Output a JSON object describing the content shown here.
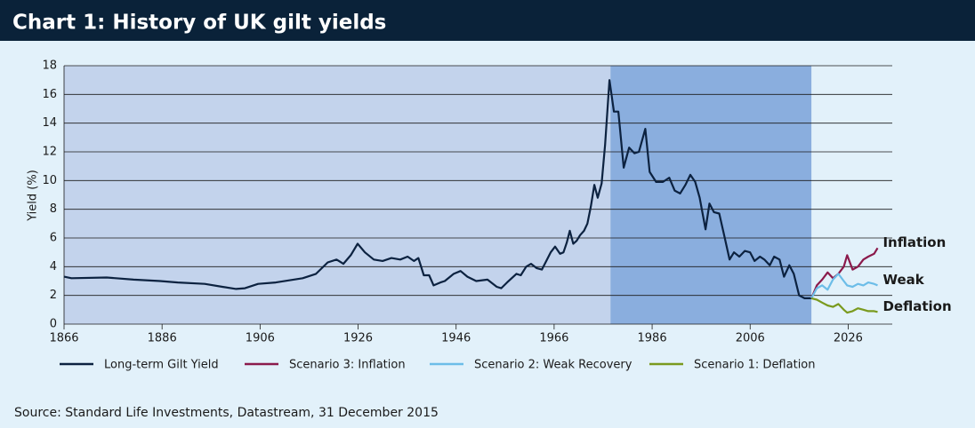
{
  "chart_data": {
    "type": "line",
    "title": "Chart 1: History of UK gilt yields",
    "y_label": "Yield (%)",
    "source": "Source: Standard Life Investments, Datastream, 31 December 2015",
    "xlim": [
      1866,
      2035
    ],
    "xticks": [
      1866,
      1886,
      1906,
      1926,
      1946,
      1966,
      1986,
      2006,
      2026
    ],
    "ylim": [
      0,
      18
    ],
    "yticks": [
      0,
      2,
      4,
      6,
      8,
      10,
      12,
      14,
      16,
      18
    ],
    "grid": true,
    "shaded_regions": [
      {
        "x0": 1866,
        "x1": 1977.5,
        "color": "#c3d3ec"
      },
      {
        "x0": 1977.5,
        "x1": 2018.5,
        "color": "#8aaede"
      }
    ],
    "series": [
      {
        "name": "Long-term Gilt Yield",
        "color": "#0c2240",
        "x": [
          1866.0,
          1867.5,
          1874.7,
          1880.2,
          1885.6,
          1889.2,
          1894.7,
          1898.3,
          1901.1,
          1902.9,
          1905.6,
          1909.2,
          1914.7,
          1917.4,
          1919.8,
          1921.6,
          1923.0,
          1924.5,
          1925.9,
          1927.4,
          1929.2,
          1931.0,
          1932.8,
          1934.6,
          1936.1,
          1937.4,
          1938.3,
          1939.4,
          1940.5,
          1941.4,
          1942.8,
          1943.7,
          1945.5,
          1946.9,
          1948.3,
          1950.1,
          1952.4,
          1954.3,
          1955.2,
          1956.4,
          1958.3,
          1959.2,
          1960.3,
          1961.3,
          1962.4,
          1963.5,
          1964.4,
          1965.3,
          1966.2,
          1967.2,
          1967.9,
          1968.6,
          1969.2,
          1969.9,
          1970.6,
          1971.3,
          1972.1,
          1972.8,
          1973.5,
          1974.2,
          1974.9,
          1975.7,
          1976.4,
          1977.3,
          1978.2,
          1979.1,
          1980.2,
          1981.3,
          1982.4,
          1983.3,
          1984.6,
          1985.5,
          1986.8,
          1988.2,
          1989.5,
          1990.6,
          1991.7,
          1992.8,
          1993.8,
          1994.8,
          1995.7,
          1996.9,
          1997.7,
          1998.6,
          1999.7,
          2000.7,
          2001.8,
          2002.7,
          2003.8,
          2004.9,
          2006.0,
          2006.9,
          2008.0,
          2008.9,
          2010.0,
          2010.9,
          2012.0,
          2012.9,
          2014.0,
          2014.9,
          2016.0,
          2017.1,
          2018.5
        ],
        "values": [
          3.3,
          3.2,
          3.25,
          3.1,
          3.0,
          2.9,
          2.8,
          2.6,
          2.45,
          2.5,
          2.8,
          2.9,
          3.2,
          3.5,
          4.3,
          4.5,
          4.2,
          4.8,
          5.6,
          5.0,
          4.5,
          4.4,
          4.6,
          4.5,
          4.7,
          4.4,
          4.6,
          3.4,
          3.4,
          2.7,
          2.9,
          3.0,
          3.5,
          3.7,
          3.3,
          3.0,
          3.1,
          2.6,
          2.5,
          2.9,
          3.5,
          3.4,
          4.0,
          4.2,
          3.9,
          3.8,
          4.4,
          5.0,
          5.4,
          4.9,
          5.0,
          5.7,
          6.5,
          5.6,
          5.8,
          6.2,
          6.5,
          7.0,
          8.2,
          9.7,
          8.8,
          9.8,
          12.5,
          17.0,
          14.8,
          14.8,
          10.9,
          12.3,
          11.9,
          12.0,
          13.6,
          10.6,
          9.9,
          9.9,
          10.2,
          9.3,
          9.1,
          9.7,
          10.4,
          9.9,
          8.8,
          6.6,
          8.4,
          7.8,
          7.7,
          6.2,
          4.5,
          5.0,
          4.7,
          5.1,
          5.0,
          4.4,
          4.7,
          4.5,
          4.1,
          4.7,
          4.5,
          3.3,
          4.1,
          3.5,
          2.0,
          1.8,
          1.8
        ]
      },
      {
        "name": "Scenario 3: Inflation",
        "color": "#8b1a4b",
        "end_label": "Inflation",
        "x": [
          2018.5,
          2019.6,
          2020.7,
          2021.8,
          2022.9,
          2024.0,
          2025.1,
          2025.8,
          2026.9,
          2028.0,
          2029.1,
          2030.1,
          2031.3,
          2032.0
        ],
        "values": [
          1.8,
          2.7,
          3.1,
          3.6,
          3.2,
          3.5,
          4.0,
          4.8,
          3.8,
          4.0,
          4.5,
          4.7,
          4.9,
          5.3
        ]
      },
      {
        "name": "Scenario 2: Weak Recovery",
        "color": "#6cbde8",
        "end_label": "Weak",
        "x": [
          2018.5,
          2019.6,
          2020.7,
          2021.8,
          2022.9,
          2024.0,
          2025.1,
          2025.8,
          2026.9,
          2028.0,
          2029.1,
          2030.1,
          2031.3,
          2032.0
        ],
        "values": [
          1.8,
          2.5,
          2.7,
          2.4,
          3.1,
          3.5,
          3.0,
          2.7,
          2.6,
          2.8,
          2.7,
          2.9,
          2.8,
          2.7
        ]
      },
      {
        "name": "Scenario 1: Deflation",
        "color": "#7a9a1e",
        "end_label": "Deflation",
        "x": [
          2018.5,
          2019.6,
          2020.7,
          2021.8,
          2022.9,
          2024.0,
          2025.1,
          2025.8,
          2026.9,
          2028.0,
          2029.1,
          2030.1,
          2031.3,
          2032.0
        ],
        "values": [
          1.8,
          1.7,
          1.5,
          1.3,
          1.2,
          1.4,
          1.0,
          0.8,
          0.9,
          1.1,
          1.0,
          0.9,
          0.9,
          0.85
        ]
      }
    ]
  }
}
